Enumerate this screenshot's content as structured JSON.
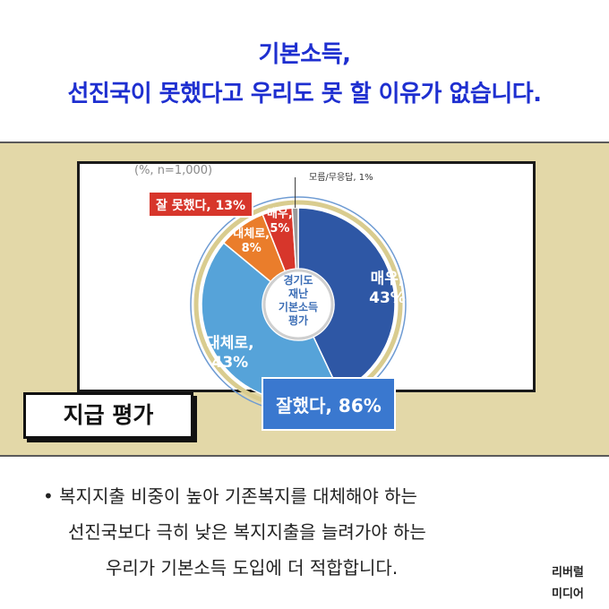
{
  "header": {
    "line1": "기본소득,",
    "line2": "선진국이 못했다고 우리도 못 할 이유가 없습니다."
  },
  "chart_data": {
    "type": "pie",
    "title": "경기도 재난 기본소득 평가",
    "unit_note": "(%, n=1,000)",
    "slices": [
      {
        "label": "매우,",
        "value": 43,
        "value_label": "43%",
        "color": "#2e57a5",
        "group": "잘했다"
      },
      {
        "label": "대체로,",
        "value": 43,
        "value_label": "43%",
        "color": "#56a3d9",
        "group": "잘했다"
      },
      {
        "label": "대체로,",
        "value": 8,
        "value_label": "8%",
        "color": "#ea7d2b",
        "group": "잘 못했다"
      },
      {
        "label": "매우,",
        "value": 5,
        "value_label": "5%",
        "color": "#d7362b",
        "group": "잘 못했다"
      },
      {
        "label": "모름/무응답,",
        "value": 1,
        "value_label": "1%",
        "color": "#9a9a9a",
        "group": "모름/무응답"
      }
    ],
    "groups": [
      {
        "label": "잘했다, 86%",
        "value": 86,
        "color": "#3a78cf"
      },
      {
        "label": "잘 못했다, 13%",
        "value": 13,
        "color": "#d7362b"
      }
    ]
  },
  "center_label": [
    "경기도",
    "재난",
    "기본소득",
    "평가"
  ],
  "tag_label": "지급 평가",
  "bullets": {
    "mark": "•",
    "line1": "복지지출 비중이 높아 기존복지를 대체해야 하는",
    "line2": "선진국보다 극히 낮은 복지지출을 늘려가야 하는",
    "line3": "우리가 기본소득 도입에 더 적합합니다."
  },
  "logo": {
    "line1": "리버럴",
    "line2": "미디어"
  }
}
